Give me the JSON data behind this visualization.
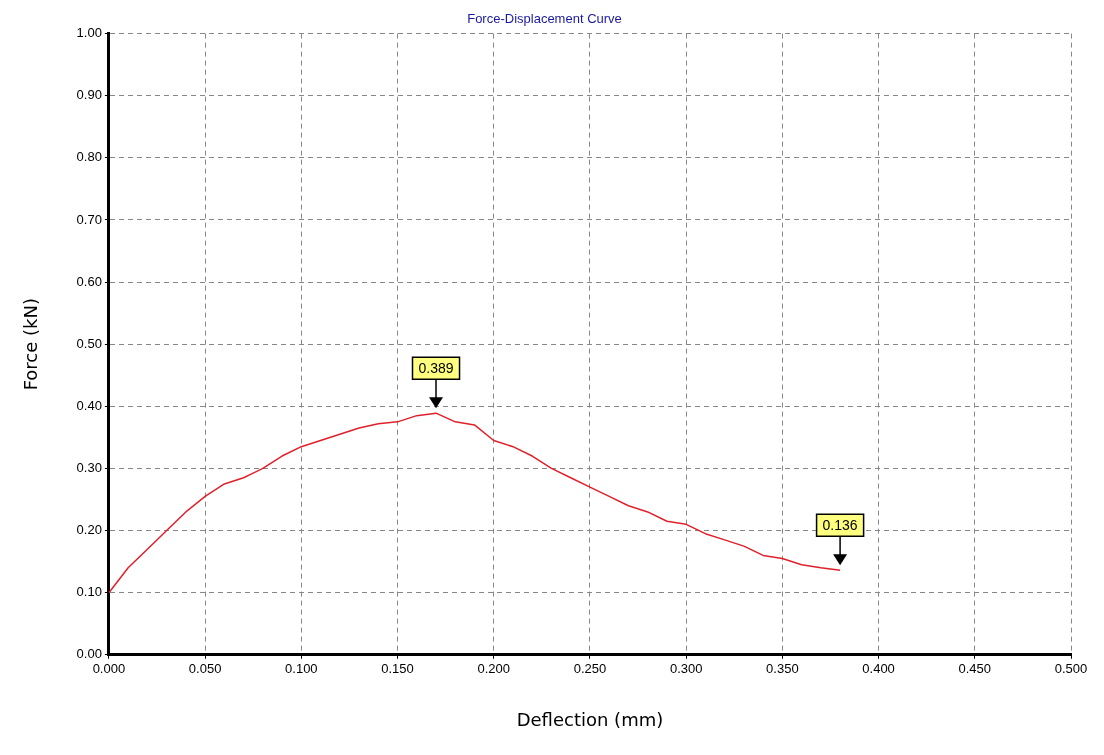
{
  "chart_data": {
    "type": "line",
    "title": "Force-Displacement Curve",
    "xlabel": "Deflection (mm)",
    "ylabel": "Force (kN)",
    "x": [
      0,
      0.01,
      0.02,
      0.03,
      0.04,
      0.05,
      0.06,
      0.07,
      0.08,
      0.09,
      0.1,
      0.11,
      0.12,
      0.13,
      0.14,
      0.15,
      0.16,
      0.17,
      0.18,
      0.19,
      0.2,
      0.21,
      0.22,
      0.23,
      0.24,
      0.25,
      0.26,
      0.27,
      0.28,
      0.29,
      0.3,
      0.31,
      0.32,
      0.33,
      0.34,
      0.35,
      0.36,
      0.37,
      0.38
    ],
    "series": [
      {
        "color": "#e0202a",
        "values": [
          0.1,
          0.14,
          0.17,
          0.2,
          0.23,
          0.255,
          0.275,
          0.285,
          0.3,
          0.32,
          0.335,
          0.345,
          0.355,
          0.365,
          0.372,
          0.375,
          0.385,
          0.389,
          0.375,
          0.37,
          0.345,
          0.335,
          0.32,
          0.3,
          0.285,
          0.27,
          0.255,
          0.24,
          0.23,
          0.215,
          0.21,
          0.195,
          0.185,
          0.175,
          0.16,
          0.155,
          0.145,
          0.14,
          0.136
        ]
      }
    ],
    "xlim": [
      0,
      0.5
    ],
    "xticks": [
      {
        "value": 0,
        "label": "0.000"
      },
      {
        "value": 0.05,
        "label": "0.050"
      },
      {
        "value": 0.1,
        "label": "0.100"
      },
      {
        "value": 0.15,
        "label": "0.150"
      },
      {
        "value": 0.2,
        "label": "0.200"
      },
      {
        "value": 0.25,
        "label": "0.250"
      },
      {
        "value": 0.3,
        "label": "0.300"
      },
      {
        "value": 0.35,
        "label": "0.350"
      },
      {
        "value": 0.4,
        "label": "0.400"
      },
      {
        "value": 0.45,
        "label": "0.450"
      },
      {
        "value": 0.5,
        "label": "0.500"
      }
    ],
    "ylim": [
      0,
      1
    ],
    "yticks": [
      {
        "value": 0,
        "label": "0.00"
      },
      {
        "value": 0.1,
        "label": "0.10"
      },
      {
        "value": 0.2,
        "label": "0.20"
      },
      {
        "value": 0.3,
        "label": "0.30"
      },
      {
        "value": 0.4,
        "label": "0.40"
      },
      {
        "value": 0.5,
        "label": "0.50"
      },
      {
        "value": 0.6,
        "label": "0.60"
      },
      {
        "value": 0.7,
        "label": "0.70"
      },
      {
        "value": 0.8,
        "label": "0.80"
      },
      {
        "value": 0.9,
        "label": "0.90"
      },
      {
        "value": 1,
        "label": "1.00"
      }
    ],
    "grid": true,
    "legend": false,
    "marker": "none",
    "line_style": "solid",
    "annotations": [
      {
        "text": "0.389",
        "x": 0.17,
        "y": 0.389
      },
      {
        "text": "0.136",
        "x": 0.38,
        "y": 0.136
      }
    ]
  }
}
